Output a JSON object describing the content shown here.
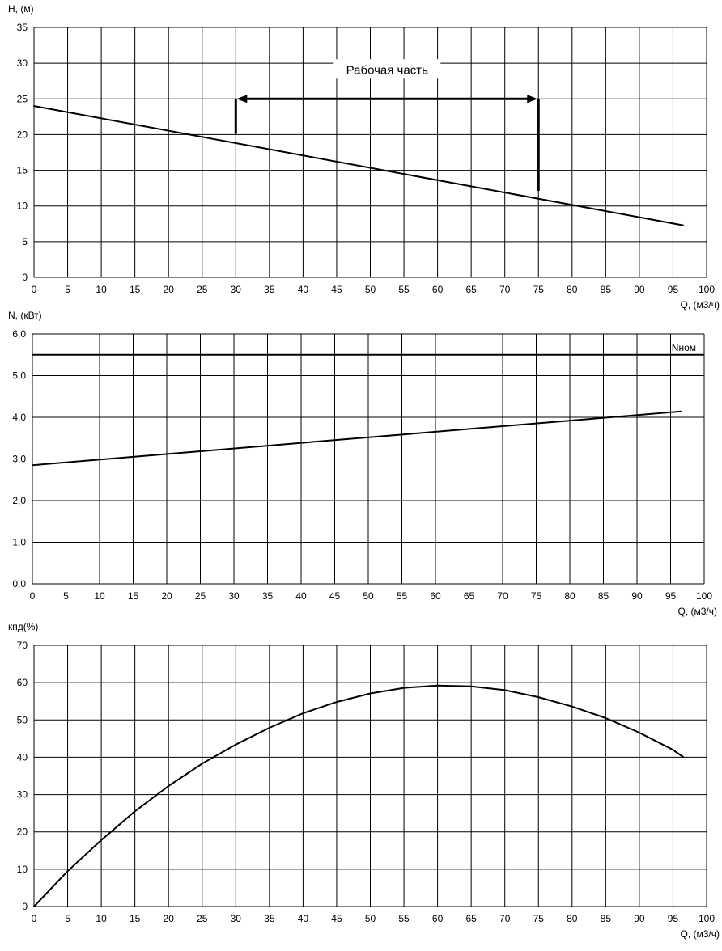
{
  "chart_data": [
    {
      "type": "line",
      "ylabel": "H, (м)",
      "xlabel": "Q, (м3/ч)",
      "xlim": [
        0,
        100
      ],
      "ylim": [
        0,
        35
      ],
      "xticks": [
        "0",
        "5",
        "10",
        "15",
        "20",
        "25",
        "30",
        "35",
        "40",
        "45",
        "50",
        "55",
        "60",
        "65",
        "70",
        "75",
        "80",
        "85",
        "90",
        "95",
        "100"
      ],
      "yticks": [
        "0",
        "5",
        "10",
        "15",
        "20",
        "25",
        "30",
        "35"
      ],
      "grid": true,
      "series": [
        {
          "x": [
            0,
            96.5
          ],
          "y": [
            24,
            7.3
          ]
        }
      ],
      "annotations": [
        {
          "text": "Рабочая часть",
          "arrow_x": [
            30,
            75
          ],
          "arrow_y": 25,
          "left_drop_to": 20.1,
          "right_drop_to": 12.1
        }
      ]
    },
    {
      "type": "line",
      "ylabel": "N, (кВт)",
      "xlabel": "Q, (м3/ч)",
      "xlim": [
        0,
        100
      ],
      "ylim": [
        0,
        6
      ],
      "xticks": [
        "0",
        "5",
        "10",
        "15",
        "20",
        "25",
        "30",
        "35",
        "40",
        "45",
        "50",
        "55",
        "60",
        "65",
        "70",
        "75",
        "80",
        "85",
        "90",
        "95",
        "100"
      ],
      "yticks": [
        "0,0",
        "1,0",
        "2,0",
        "3,0",
        "4,0",
        "5,0",
        "6,0"
      ],
      "grid": true,
      "series": [
        {
          "x": [
            0,
            96.5
          ],
          "y": [
            2.85,
            4.14
          ]
        }
      ],
      "reference_lines": [
        {
          "name": "Nном",
          "y": 5.5
        }
      ]
    },
    {
      "type": "line",
      "ylabel": "кпд(%)",
      "xlabel": "Q, (м3/ч)",
      "xlim": [
        0,
        100
      ],
      "ylim": [
        0,
        70
      ],
      "xticks": [
        "0",
        "5",
        "10",
        "15",
        "20",
        "25",
        "30",
        "35",
        "40",
        "45",
        "50",
        "55",
        "60",
        "65",
        "70",
        "75",
        "80",
        "85",
        "90",
        "95",
        "100"
      ],
      "yticks": [
        "0",
        "10",
        "20",
        "30",
        "40",
        "50",
        "60",
        "70"
      ],
      "grid": true,
      "series": [
        {
          "x": [
            0,
            5,
            10,
            15,
            20,
            25,
            30,
            35,
            40,
            45,
            50,
            55,
            60,
            65,
            70,
            75,
            80,
            85,
            90,
            95,
            96.5
          ],
          "y": [
            0,
            9.5,
            17.8,
            25.5,
            32.3,
            38.3,
            43.4,
            47.9,
            51.8,
            54.8,
            57.1,
            58.6,
            59.2,
            59.0,
            58.0,
            56.1,
            53.6,
            50.5,
            46.6,
            42.0,
            40.1
          ]
        }
      ]
    }
  ]
}
